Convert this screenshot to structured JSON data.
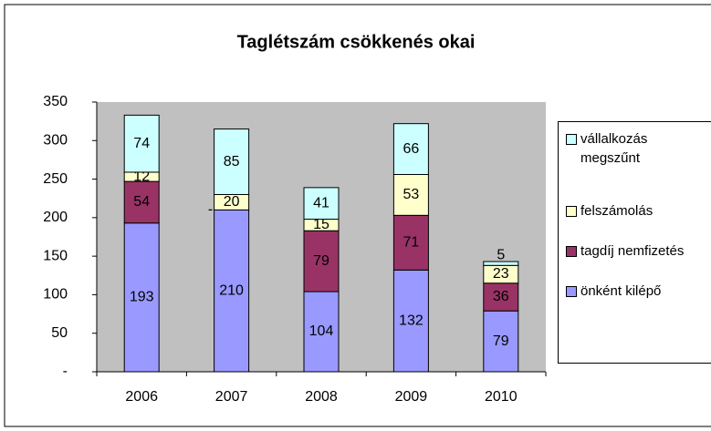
{
  "chart_data": {
    "type": "stacked_bar",
    "title": "Taglétszám csökkenés okai",
    "categories": [
      "2006",
      "2007",
      "2008",
      "2009",
      "2010"
    ],
    "series": [
      {
        "name": "önként kilépő",
        "color": "#9999ff",
        "values": [
          193,
          210,
          104,
          132,
          79
        ]
      },
      {
        "name": "tagdíj nemfizetés",
        "color": "#993366",
        "values": [
          54,
          0,
          79,
          71,
          36
        ],
        "value_labels": [
          "54",
          "-",
          "79",
          "71",
          "36"
        ]
      },
      {
        "name": "felszámolás",
        "color": "#ffffcc",
        "values": [
          12,
          20,
          15,
          53,
          23
        ]
      },
      {
        "name": "vállalkozás megszűnt",
        "color": "#ccffff",
        "values": [
          74,
          85,
          41,
          66,
          5
        ]
      }
    ],
    "ylim": [
      0,
      350
    ],
    "yticks": [
      {
        "value": 0,
        "label": "-"
      },
      50,
      100,
      150,
      200,
      250,
      300,
      350
    ],
    "grid": false,
    "legend": "right"
  }
}
